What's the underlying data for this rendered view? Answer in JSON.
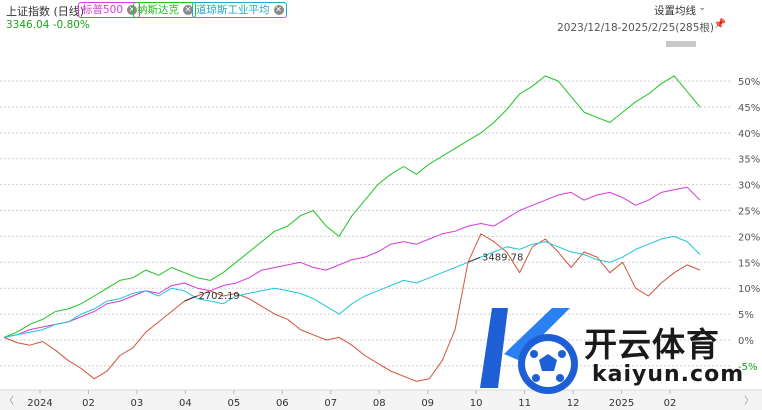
{
  "header": {
    "title": "上证指数 (日线)",
    "price": "3346.04",
    "change": "-0.80%",
    "settings_label": "设置均线",
    "date_range": "2023/12/18-2025/2/25(285根)"
  },
  "compare_tags": [
    {
      "label": "标普500",
      "color": "#d63bd6"
    },
    {
      "label": "纳斯达克",
      "color": "#22c322"
    },
    {
      "label": "道琼斯工业平均",
      "color": "#22a8c9"
    }
  ],
  "watermark": {
    "name": "开云体育",
    "url": "kaiyun.com"
  },
  "chart_data": {
    "type": "line",
    "y_unit": "%",
    "yticks": [
      "50%",
      "45%",
      "40%",
      "35%",
      "30%",
      "25%",
      "20%",
      "15%",
      "10%",
      "5%",
      "0%",
      "-5%"
    ],
    "ylim": [
      -8.5,
      56
    ],
    "x_axis_labels": [
      "2024",
      "02",
      "03",
      "04",
      "05",
      "06",
      "07",
      "08",
      "09",
      "10",
      "11",
      "12",
      "2025",
      "02"
    ],
    "annotations": [
      {
        "text": "2702.19",
        "series": "上证指数",
        "index": 14
      },
      {
        "text": "3489.78",
        "series": "上证指数",
        "index": 36
      }
    ],
    "series": [
      {
        "name": "上证指数",
        "color": "#d0553a",
        "values": [
          0.5,
          -0.5,
          -1.0,
          -0.3,
          -2.0,
          -4.0,
          -5.5,
          -7.5,
          -6.0,
          -3.0,
          -1.5,
          1.5,
          3.5,
          5.5,
          7.5,
          8.5,
          9.5,
          8.5,
          9.0,
          8.0,
          6.5,
          5.0,
          4.0,
          2.0,
          1.0,
          0.0,
          0.5,
          -1.0,
          -3.0,
          -4.5,
          -6.0,
          -7.0,
          -8.0,
          -7.5,
          -4.0,
          2.0,
          15.0,
          20.5,
          19.0,
          17.0,
          13.0,
          18.0,
          19.5,
          17.0,
          14.0,
          17.0,
          16.0,
          13.0,
          15.0,
          10.0,
          8.5,
          11.0,
          13.0,
          14.5,
          13.5
        ]
      },
      {
        "name": "标普500",
        "color": "#d63bd6",
        "values": [
          0.5,
          1.0,
          2.0,
          2.5,
          3.0,
          3.5,
          4.5,
          5.5,
          7.0,
          7.5,
          8.5,
          9.5,
          9.0,
          10.5,
          11.0,
          10.0,
          9.5,
          10.5,
          11.0,
          12.0,
          13.5,
          14.0,
          14.5,
          15.0,
          14.0,
          13.5,
          14.5,
          15.5,
          16.0,
          17.0,
          18.5,
          19.0,
          18.5,
          19.5,
          20.5,
          21.0,
          22.0,
          22.5,
          22.0,
          23.5,
          25.0,
          26.0,
          27.0,
          28.0,
          28.5,
          27.0,
          28.0,
          28.5,
          27.5,
          26.0,
          27.0,
          28.5,
          29.0,
          29.5,
          27.0
        ]
      },
      {
        "name": "纳斯达克",
        "color": "#22c322",
        "values": [
          0.5,
          1.5,
          3.0,
          4.0,
          5.5,
          6.0,
          7.0,
          8.5,
          10.0,
          11.5,
          12.0,
          13.5,
          12.5,
          14.0,
          13.0,
          12.0,
          11.5,
          13.0,
          15.0,
          17.0,
          19.0,
          21.0,
          22.0,
          24.0,
          25.0,
          22.0,
          20.0,
          24.0,
          27.0,
          30.0,
          32.0,
          33.5,
          32.0,
          34.0,
          35.5,
          37.0,
          38.5,
          40.0,
          42.0,
          44.5,
          47.5,
          49.0,
          51.0,
          50.0,
          47.0,
          44.0,
          43.0,
          42.0,
          44.0,
          46.0,
          47.5,
          49.5,
          51.0,
          48.0,
          45.0
        ]
      },
      {
        "name": "道琼斯工业平均",
        "color": "#22c6d6",
        "values": [
          0.5,
          1.0,
          1.5,
          2.0,
          3.0,
          3.5,
          5.0,
          6.0,
          7.5,
          8.0,
          9.0,
          9.5,
          8.5,
          10.0,
          9.5,
          8.0,
          7.5,
          7.0,
          8.5,
          9.0,
          9.5,
          10.0,
          9.5,
          9.0,
          8.0,
          6.5,
          5.0,
          7.0,
          8.5,
          9.5,
          10.5,
          11.5,
          11.0,
          12.0,
          13.0,
          14.0,
          15.0,
          16.0,
          17.0,
          18.0,
          17.5,
          18.5,
          19.0,
          18.0,
          17.0,
          16.5,
          15.5,
          15.0,
          16.0,
          17.5,
          18.5,
          19.5,
          20.0,
          19.0,
          16.5
        ]
      }
    ]
  }
}
